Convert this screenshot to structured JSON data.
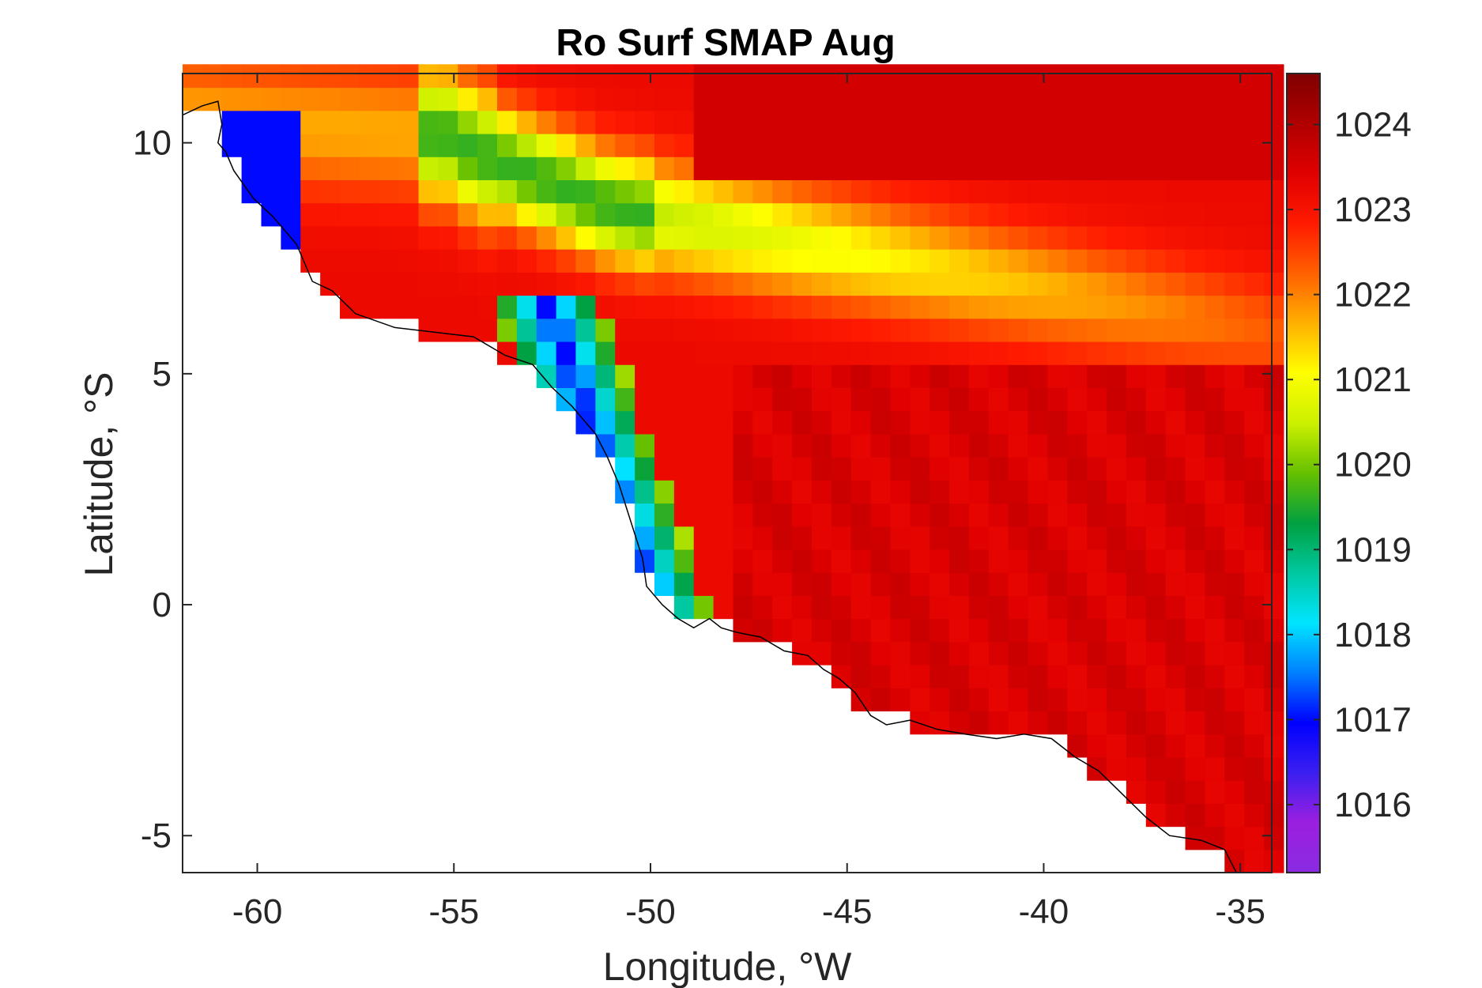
{
  "chart_data": {
    "type": "heatmap",
    "title": "Ro Surf SMAP Aug",
    "xlabel": "Longitude, °W",
    "ylabel": "Latitude, °S",
    "xlim": [
      -61.9,
      -34.2
    ],
    "ylim": [
      -5.8,
      11.5
    ],
    "xticks": [
      -60,
      -55,
      -50,
      -45,
      -40,
      -35
    ],
    "yticks": [
      -5,
      0,
      5,
      10
    ],
    "xtick_labels": [
      "-60",
      "-55",
      "-50",
      "-45",
      "-40",
      "-35"
    ],
    "ytick_labels": [
      "-5",
      "0",
      "5",
      "10"
    ],
    "colorbar": {
      "range": [
        1015.2,
        1024.6
      ],
      "ticks": [
        1016,
        1017,
        1018,
        1019,
        1020,
        1021,
        1022,
        1023,
        1024
      ],
      "tick_labels": [
        "1016",
        "1017",
        "1018",
        "1019",
        "1020",
        "1021",
        "1022",
        "1023",
        "1024"
      ],
      "colormap": [
        "#8a2be2",
        "#9b1fe0",
        "#3a1ff0",
        "#0000ff",
        "#0080ff",
        "#00e5ff",
        "#00c8a0",
        "#00a040",
        "#66c000",
        "#ccf000",
        "#ffff00",
        "#ffb000",
        "#ff6000",
        "#ff1a00",
        "#e00000",
        "#b00000",
        "#800000"
      ]
    },
    "field_description_points": {
      "lon_step": 0.5,
      "lat_step": 0.5
    },
    "grid": false
  }
}
